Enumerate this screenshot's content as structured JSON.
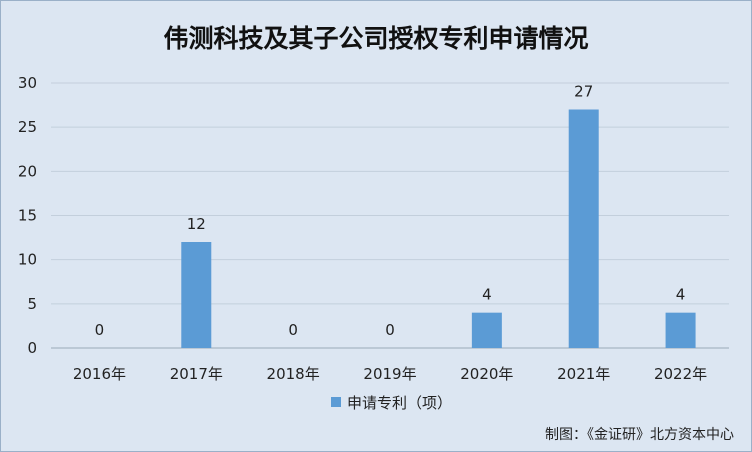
{
  "chart_data": {
    "type": "bar",
    "title": "伟测科技及其子公司授权专利申请情况",
    "categories": [
      "2016年",
      "2017年",
      "2018年",
      "2019年",
      "2020年",
      "2021年",
      "2022年"
    ],
    "series": [
      {
        "name": "申请专利（项）",
        "values": [
          0,
          12,
          0,
          0,
          4,
          27,
          4
        ]
      }
    ],
    "ylim": [
      0,
      30
    ],
    "yticks": [
      0,
      5,
      10,
      15,
      20,
      25,
      30
    ],
    "grid": true,
    "legend": "bottom",
    "bar_color": "#5b9bd5"
  },
  "source_note": "制图：《金证研》北方资本中心"
}
